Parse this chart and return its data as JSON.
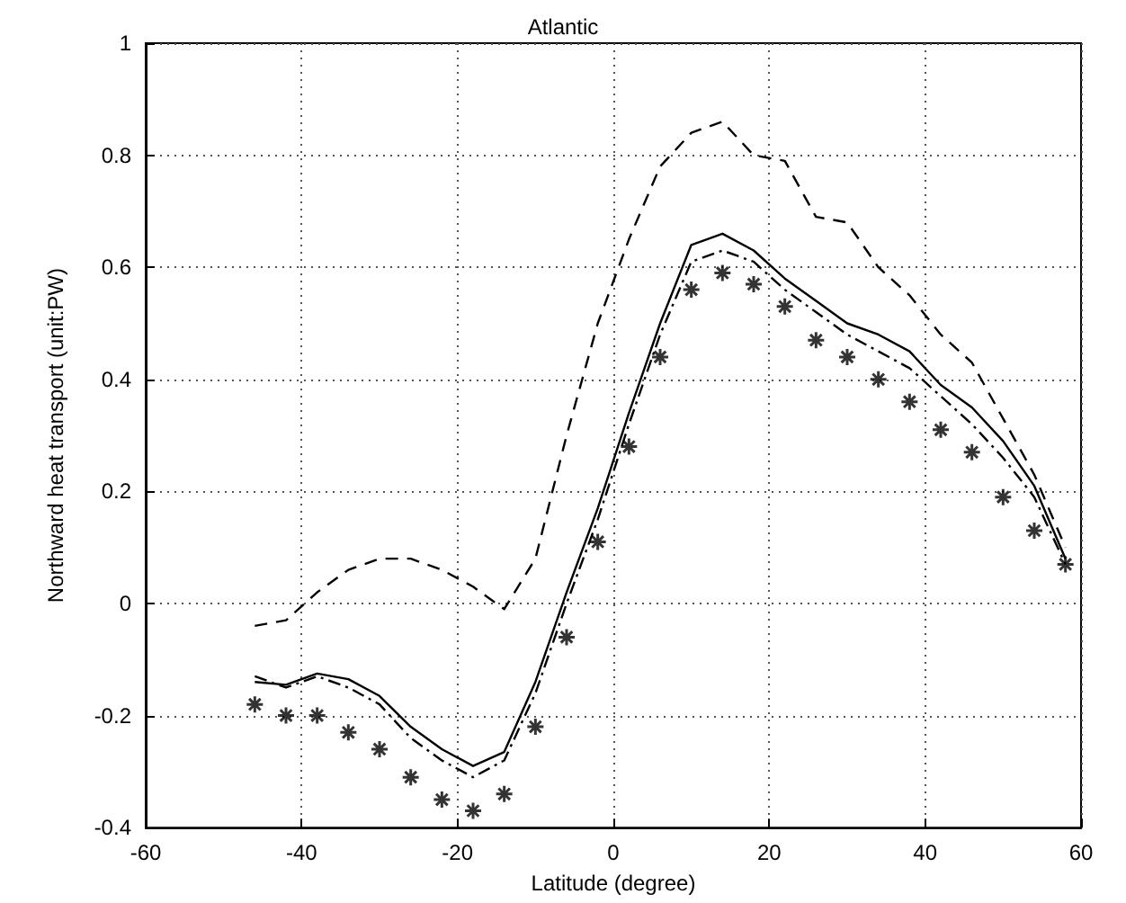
{
  "chart_data": {
    "type": "line",
    "title": "Atlantic",
    "xlabel": "Latitude (degree)",
    "ylabel": "Northward heat transport (unit:PW)",
    "x": [
      -46,
      -42,
      -38,
      -34,
      -30,
      -26,
      -22,
      -18,
      -14,
      -10,
      -6,
      -2,
      2,
      6,
      10,
      14,
      18,
      22,
      26,
      30,
      34,
      38,
      42,
      46,
      50,
      54,
      58
    ],
    "series": [
      {
        "color": "#000000",
        "line_style": "solid",
        "values": [
          -0.14,
          -0.145,
          -0.125,
          -0.135,
          -0.165,
          -0.22,
          -0.26,
          -0.29,
          -0.265,
          -0.14,
          0.02,
          0.17,
          0.34,
          0.5,
          0.64,
          0.66,
          0.63,
          0.58,
          0.54,
          0.5,
          0.48,
          0.45,
          0.39,
          0.35,
          0.29,
          0.21,
          0.08
        ]
      },
      {
        "color": "#000000",
        "line_style": "dashed",
        "values": [
          -0.04,
          -0.03,
          0.02,
          0.06,
          0.08,
          0.08,
          0.06,
          0.03,
          -0.01,
          0.08,
          0.3,
          0.5,
          0.65,
          0.78,
          0.84,
          0.86,
          0.8,
          0.79,
          0.69,
          0.68,
          0.6,
          0.55,
          0.48,
          0.43,
          0.33,
          0.23,
          0.1
        ]
      },
      {
        "color": "#000000",
        "line_style": "dashdot",
        "values": [
          -0.13,
          -0.15,
          -0.13,
          -0.15,
          -0.18,
          -0.24,
          -0.28,
          -0.31,
          -0.28,
          -0.16,
          0.0,
          0.15,
          0.32,
          0.48,
          0.61,
          0.63,
          0.61,
          0.56,
          0.52,
          0.48,
          0.45,
          0.42,
          0.37,
          0.32,
          0.26,
          0.19,
          0.07
        ]
      },
      {
        "type": "scatter",
        "color": "#000000",
        "marker": "cross",
        "values": [
          -0.18,
          -0.2,
          -0.2,
          -0.23,
          -0.26,
          -0.31,
          -0.35,
          -0.37,
          -0.34,
          -0.22,
          -0.06,
          0.11,
          0.28,
          0.44,
          0.56,
          0.59,
          0.57,
          0.53,
          0.47,
          0.44,
          0.4,
          0.36,
          0.31,
          0.27,
          0.19,
          0.13,
          0.07
        ]
      }
    ],
    "xlim": [
      -60,
      60
    ],
    "xticks": [
      -60,
      -40,
      -20,
      0,
      20,
      40,
      60
    ],
    "ylim": [
      -0.4,
      1
    ],
    "yticks": [
      -0.4,
      -0.2,
      0,
      0.2,
      0.4,
      0.6,
      0.8,
      1
    ],
    "grid": true,
    "marker": "none"
  }
}
